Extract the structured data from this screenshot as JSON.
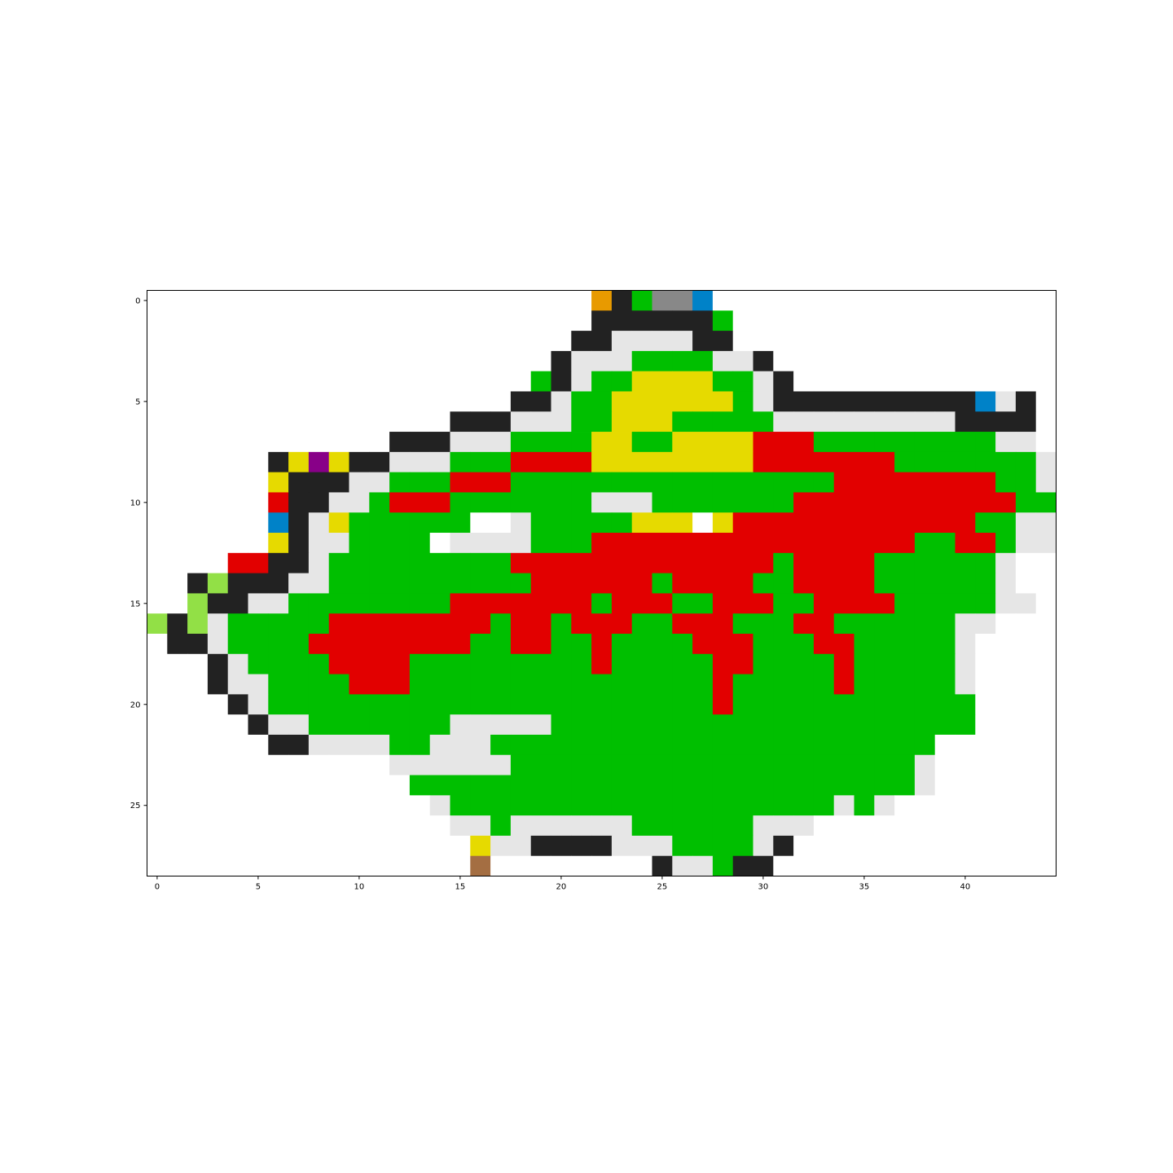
{
  "chart_data": {
    "type": "heatmap",
    "grid_size": {
      "rows": 29,
      "cols": 45
    },
    "x_ticks": [
      0,
      5,
      10,
      15,
      20,
      25,
      30,
      35,
      40
    ],
    "y_ticks": [
      0,
      5,
      10,
      15,
      20,
      25
    ],
    "palette": {
      ".": "#ffffff",
      "K": "#222222",
      "W": "#e6e6e6",
      "G": "#00bf00",
      "R": "#e20000",
      "Y": "#e6da00",
      "O": "#e89a00",
      "A": "#888888",
      "B": "#0082c8",
      "L": "#92e046",
      "P": "#880088",
      "N": "#a46e42"
    },
    "rows": [
      "......................OKGAAB.................",
      "......................KKKKKKG................",
      ".....................KKWWWWKK................",
      "....................KWWWGGGGWWK..............",
      "...................GKWGGYYYYGGWK.............",
      "..................KKWGGYYYYYYGWKKKKKKKKKKBWK",
      "...............KKKWWWGGYYYGGGGGWWWWWWWWWKKKK",
      "............KKKWWWGGGGYYGGYYYYRRRGGGGGGGGGWW",
      "......KYPYKKWWWGGGRRRRYYYYYYYYRRRRRRRGGGGGGGW",
      "......YKKKWWGGGRRRGGGGGGGGGGGGGGGGRRRRRRRRGGW",
      "......RKKWWGRRRGGGGGGGWWWGGGGGGGRRRRRRRRRRRGGW",
      "......BKWYGGGGGG..WGGGGGYYY.YRRRRRRRRRRRRGGWW.",
      "......YKWWGGGG.WWWWGGGRRRRRRRRRRRRRRRRGGRRGWW.",
      "....RRKKWGGGGGGGGGRRRRRRRRRRRRRGRRRRGGGGGGW..",
      "..KLKKKWWGGGGGGGGGGRRRRRRGRRRRGGRRRRGGGGGGW...",
      "..LKKWWGGGGGGGGRRRRRRRGRRRGGRRRGGRRRRGGGGGWW..",
      "LKLWGGGGGRRRRRRRRGRRGRRRGGRRRGGGRRGGGGGGWW...",
      ".KKWGGGGRRRRRRRRGGRRGGRGGGGRRRGGGRRGGGGGW....",
      "...KWGGGGRRRRGGGGGGGGGRGGGGGRRGGGGRGGGGGW....",
      "...KWWGGGGRRRGGGGGGGGGGGGGGGRGGGGGRGGGGGW....",
      "....KWGGGGGGGGGGGGGGGGGGGGGGRGGGGGGGGGGGG....",
      ".....KWWGGGGGGGWWWWWGGGGGGGGGGGGGGGGGGGGG.....",
      "......KKWWWWGGWWWGGGGGGGGGGGGGGGGGGGGGG......",
      "............WWWWWWGGGGGGGGGGGGGGGGGGGGW......",
      ".............GGGGGGGGGGGGGGGGGGGGGGGGGW.......",
      "..............WGGGGGGGGGGGGGGGGGGGWGW........",
      "...............WWGWWWWWWGGGGGGWWW............",
      "................YWWKKKKWWWGGGGWK.............",
      "................N........KWWGKK.............."
    ]
  }
}
